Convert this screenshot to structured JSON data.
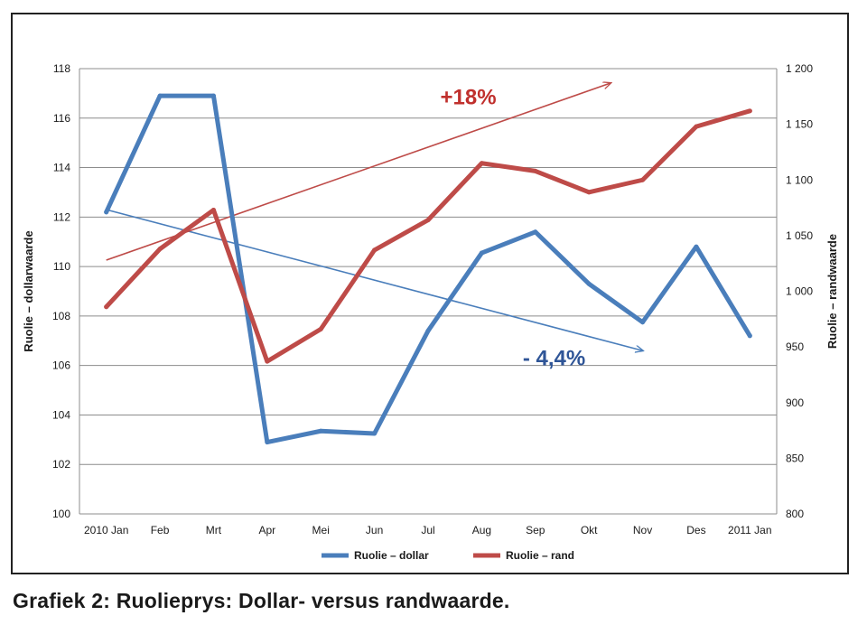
{
  "caption": "Grafiek 2: Ruolieprys: Dollar- versus randwaarde.",
  "chart_data": {
    "type": "line",
    "title": "",
    "categories": [
      "2010 Jan",
      "Feb",
      "Mrt",
      "Apr",
      "Mei",
      "Jun",
      "Jul",
      "Aug",
      "Sep",
      "Okt",
      "Nov",
      "Des",
      "2011 Jan"
    ],
    "y_left": {
      "label": "Ruolie – dollarwaarde",
      "range": [
        100,
        118
      ],
      "ticks": [
        "100",
        "102",
        "104",
        "106",
        "108",
        "110",
        "112",
        "114",
        "116",
        "118"
      ]
    },
    "y_right": {
      "label": "Ruolie – randwaarde",
      "range": [
        800,
        1200
      ],
      "ticks": [
        "800",
        "850",
        "900",
        "950",
        "1 000",
        "1 050",
        "1 100",
        "1 150",
        "1 200"
      ]
    },
    "grid": true,
    "legend_position": "bottom",
    "series": [
      {
        "name": "Ruolie – dollar",
        "axis": "left",
        "color": "#4a7ebb",
        "values": [
          112.2,
          116.9,
          116.9,
          102.9,
          103.35,
          103.25,
          107.4,
          110.55,
          111.4,
          109.3,
          107.75,
          110.8,
          107.2
        ]
      },
      {
        "name": "Ruolie – rand",
        "axis": "right",
        "color": "#be4b48",
        "values": [
          986,
          1038,
          1073,
          937,
          966,
          1037,
          1064,
          1115,
          1108,
          1089,
          1100,
          1148,
          1162
        ]
      }
    ],
    "trendlines": [
      {
        "series": "Ruolie – dollar",
        "axis": "left",
        "color": "#4a7ebb",
        "from": [
          0,
          112.3
        ],
        "to": [
          10.0,
          106.6
        ]
      },
      {
        "series": "Ruolie – rand",
        "axis": "right",
        "color": "#be4b48",
        "from": [
          0,
          1028
        ],
        "to": [
          9.4,
          1187
        ]
      }
    ],
    "annotations": [
      {
        "text": "+18%",
        "color": "#c0302d",
        "axis": "right",
        "x": 6.75,
        "y": 1168
      },
      {
        "text": "- 4,4%",
        "color": "#2f5597",
        "axis": "left",
        "x": 8.35,
        "y": 106.0
      }
    ]
  }
}
